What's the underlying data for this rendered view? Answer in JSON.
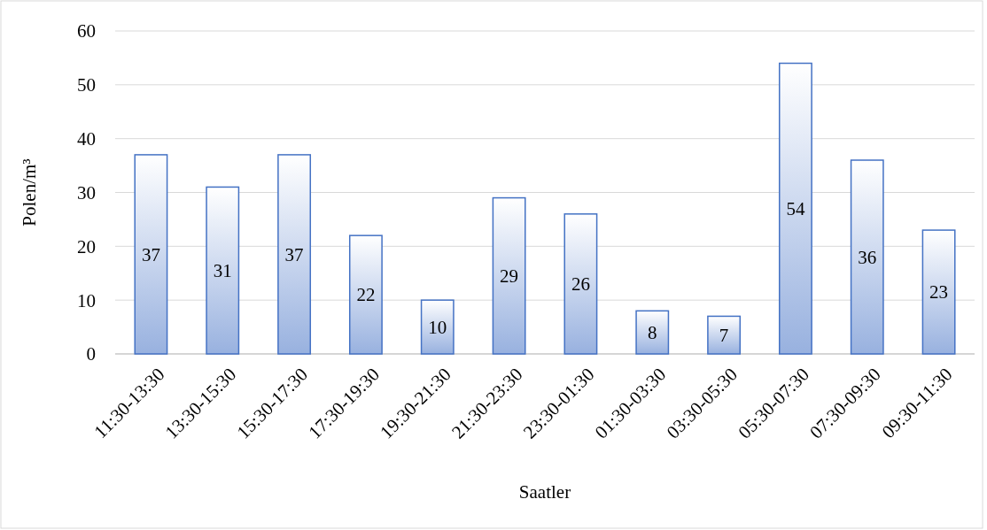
{
  "chart_data": {
    "type": "bar",
    "xlabel": "Saatler",
    "ylabel": "Polen/m³",
    "categories": [
      "11:30-13:30",
      "13:30-15:30",
      "15:30-17:30",
      "17:30-19:30",
      "19:30-21:30",
      "21:30-23:30",
      "23:30-01:30",
      "01:30-03:30",
      "03:30-05:30",
      "05:30-07:30",
      "07:30-09:30",
      "09:30-11:30"
    ],
    "values": [
      37,
      31,
      37,
      22,
      10,
      29,
      26,
      8,
      7,
      54,
      36,
      23
    ],
    "color": "#4472c4",
    "ylim": [
      0,
      60
    ],
    "yticks": [
      0,
      10,
      20,
      30,
      40,
      50,
      60
    ],
    "grid": "y",
    "data_labels": true
  }
}
